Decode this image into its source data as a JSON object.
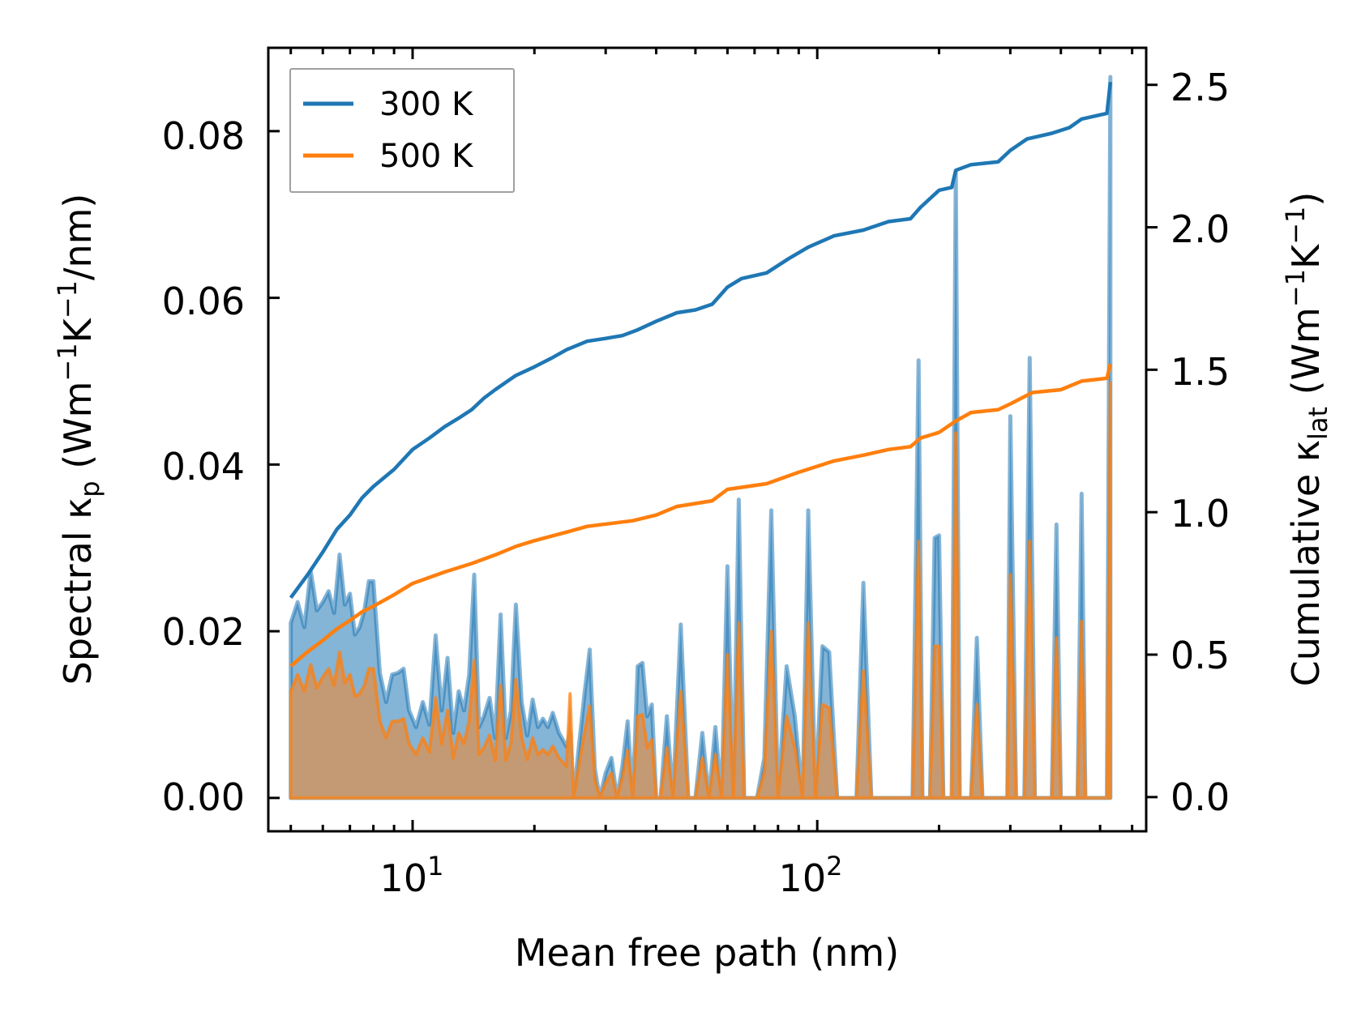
{
  "chart_data": {
    "type": "area+line (dual y-axis, log x)",
    "xlabel": "Mean free path (nm)",
    "xscale": "log",
    "xlim": [
      4.4,
      650
    ],
    "x_major_ticks": [
      {
        "value": 10,
        "base": "10",
        "exp": "1"
      },
      {
        "value": 100,
        "base": "10",
        "exp": "2"
      }
    ],
    "y_left": {
      "label_parts": {
        "pre": "Spectral κ",
        "sub": "p",
        "mid": " (Wm",
        "sup1": "−1",
        "mid2": "K",
        "sup2": "−1",
        "post": "/nm)"
      },
      "lim": [
        -0.004,
        0.09
      ],
      "ticks": [
        "0.00",
        "0.02",
        "0.04",
        "0.06",
        "0.08"
      ],
      "tick_values": [
        0,
        0.02,
        0.04,
        0.06,
        0.08
      ]
    },
    "y_right": {
      "label_parts": {
        "pre": "Cumulative κ",
        "sub": "lat",
        "mid": " (Wm",
        "sup1": "−1",
        "mid2": "K",
        "sup2": "−1",
        "post": ")"
      },
      "lim": [
        -0.12,
        2.63
      ],
      "ticks": [
        "0.0",
        "0.5",
        "1.0",
        "1.5",
        "2.0",
        "2.5"
      ],
      "tick_values": [
        0,
        0.5,
        1.0,
        1.5,
        2.0,
        2.5
      ]
    },
    "legend": {
      "position": "upper-left",
      "entries": [
        "300 K",
        "500 K"
      ]
    },
    "colors": {
      "s300": "#1f77b4",
      "s500": "#ff7f0e",
      "fill500": "#c49a74"
    },
    "spectral_300K": [
      [
        5.0,
        0.0
      ],
      [
        5.0,
        0.021
      ],
      [
        5.2,
        0.0235
      ],
      [
        5.4,
        0.0205
      ],
      [
        5.6,
        0.0272
      ],
      [
        5.8,
        0.0225
      ],
      [
        6.0,
        0.0235
      ],
      [
        6.2,
        0.0248
      ],
      [
        6.4,
        0.0222
      ],
      [
        6.6,
        0.0292
      ],
      [
        6.8,
        0.0232
      ],
      [
        7.0,
        0.0245
      ],
      [
        7.2,
        0.0196
      ],
      [
        7.4,
        0.0205
      ],
      [
        7.6,
        0.0225
      ],
      [
        7.8,
        0.026
      ],
      [
        8.0,
        0.026
      ],
      [
        8.3,
        0.015
      ],
      [
        8.6,
        0.0115
      ],
      [
        8.9,
        0.0148
      ],
      [
        9.2,
        0.015
      ],
      [
        9.5,
        0.0155
      ],
      [
        9.8,
        0.0105
      ],
      [
        10.2,
        0.0085
      ],
      [
        10.6,
        0.0115
      ],
      [
        11.0,
        0.0088
      ],
      [
        11.4,
        0.0195
      ],
      [
        11.8,
        0.0105
      ],
      [
        12.2,
        0.0168
      ],
      [
        12.6,
        0.0078
      ],
      [
        13.0,
        0.0128
      ],
      [
        13.4,
        0.0105
      ],
      [
        13.8,
        0.0148
      ],
      [
        14.2,
        0.0268
      ],
      [
        14.6,
        0.0085
      ],
      [
        15.0,
        0.0098
      ],
      [
        15.5,
        0.012
      ],
      [
        16.0,
        0.0072
      ],
      [
        16.5,
        0.022
      ],
      [
        17.0,
        0.0072
      ],
      [
        17.5,
        0.0105
      ],
      [
        18.0,
        0.0232
      ],
      [
        18.6,
        0.0115
      ],
      [
        19.2,
        0.0075
      ],
      [
        19.8,
        0.0118
      ],
      [
        20.4,
        0.0085
      ],
      [
        21.0,
        0.0095
      ],
      [
        21.6,
        0.0085
      ],
      [
        22.2,
        0.0102
      ],
      [
        23.0,
        0.0078
      ],
      [
        24.0,
        0.0062
      ],
      [
        24.5,
        0.0078
      ],
      [
        25.0,
        0.0
      ],
      [
        25.8,
        0.0065
      ],
      [
        26.6,
        0.0125
      ],
      [
        27.4,
        0.0178
      ],
      [
        28.2,
        0.0035
      ],
      [
        29.0,
        0.0
      ],
      [
        30.0,
        0.003
      ],
      [
        31.0,
        0.0048
      ],
      [
        32.0,
        0.0
      ],
      [
        33.0,
        0.0038
      ],
      [
        34.0,
        0.0092
      ],
      [
        35.0,
        0.0
      ],
      [
        36.0,
        0.0158
      ],
      [
        37.0,
        0.0162
      ],
      [
        38.0,
        0.0098
      ],
      [
        39.0,
        0.0112
      ],
      [
        40.0,
        0.0
      ],
      [
        41.0,
        0.0
      ],
      [
        42.5,
        0.0098
      ],
      [
        44.0,
        0.0
      ],
      [
        46.0,
        0.0208
      ],
      [
        48.0,
        0.0
      ],
      [
        50.0,
        0.0
      ],
      [
        52.0,
        0.0078
      ],
      [
        54.0,
        0.0
      ],
      [
        56.0,
        0.0085
      ],
      [
        58.0,
        0.0
      ],
      [
        60.0,
        0.0278
      ],
      [
        62.0,
        0.0
      ],
      [
        64.0,
        0.0358
      ],
      [
        66.0,
        0.0
      ],
      [
        68.0,
        0.0
      ],
      [
        71.0,
        0.0
      ],
      [
        74.0,
        0.0048
      ],
      [
        77.0,
        0.0345
      ],
      [
        80.0,
        0.0
      ],
      [
        84.0,
        0.0158
      ],
      [
        88.0,
        0.0098
      ],
      [
        92.0,
        0.0
      ],
      [
        95.0,
        0.0345
      ],
      [
        99.0,
        0.0
      ],
      [
        103.0,
        0.0182
      ],
      [
        107.0,
        0.0175
      ],
      [
        112.0,
        0.0
      ],
      [
        118.0,
        0.0
      ],
      [
        125.0,
        0.0
      ],
      [
        130.0,
        0.0258
      ],
      [
        136.0,
        0.0
      ],
      [
        145.0,
        0.0
      ],
      [
        155.0,
        0.0
      ],
      [
        165.0,
        0.0
      ],
      [
        172.0,
        0.0
      ],
      [
        178.0,
        0.0525
      ],
      [
        182.0,
        0.0
      ],
      [
        190.0,
        0.0
      ],
      [
        195.0,
        0.0312
      ],
      [
        200.0,
        0.0315
      ],
      [
        205.0,
        0.0
      ],
      [
        215.0,
        0.0
      ],
      [
        220.0,
        0.0752
      ],
      [
        225.0,
        0.0
      ],
      [
        240.0,
        0.0
      ],
      [
        248.0,
        0.0192
      ],
      [
        256.0,
        0.0
      ],
      [
        280.0,
        0.0
      ],
      [
        295.0,
        0.0
      ],
      [
        300.0,
        0.0458
      ],
      [
        310.0,
        0.0
      ],
      [
        325.0,
        0.0
      ],
      [
        335.0,
        0.0528
      ],
      [
        345.0,
        0.0
      ],
      [
        380.0,
        0.0
      ],
      [
        390.0,
        0.0328
      ],
      [
        400.0,
        0.0
      ],
      [
        440.0,
        0.0
      ],
      [
        450.0,
        0.0365
      ],
      [
        460.0,
        0.0
      ],
      [
        500.0,
        0.0
      ],
      [
        520.0,
        0.0
      ],
      [
        530.0,
        0.0865
      ]
    ],
    "spectral_500K": [
      [
        5.0,
        0.0
      ],
      [
        5.0,
        0.0128
      ],
      [
        5.2,
        0.0148
      ],
      [
        5.4,
        0.0128
      ],
      [
        5.6,
        0.016
      ],
      [
        5.8,
        0.0132
      ],
      [
        6.0,
        0.0145
      ],
      [
        6.2,
        0.0155
      ],
      [
        6.4,
        0.0135
      ],
      [
        6.6,
        0.0175
      ],
      [
        6.8,
        0.0138
      ],
      [
        7.0,
        0.0148
      ],
      [
        7.2,
        0.0122
      ],
      [
        7.4,
        0.0125
      ],
      [
        7.6,
        0.0135
      ],
      [
        7.8,
        0.0155
      ],
      [
        8.0,
        0.0155
      ],
      [
        8.3,
        0.0092
      ],
      [
        8.6,
        0.0072
      ],
      [
        8.9,
        0.0092
      ],
      [
        9.2,
        0.0092
      ],
      [
        9.5,
        0.0095
      ],
      [
        9.8,
        0.0065
      ],
      [
        10.2,
        0.0052
      ],
      [
        10.6,
        0.0072
      ],
      [
        11.0,
        0.0055
      ],
      [
        11.4,
        0.012
      ],
      [
        11.8,
        0.0065
      ],
      [
        12.2,
        0.0105
      ],
      [
        12.6,
        0.0048
      ],
      [
        13.0,
        0.0078
      ],
      [
        13.4,
        0.0065
      ],
      [
        13.8,
        0.0092
      ],
      [
        14.2,
        0.0165
      ],
      [
        14.6,
        0.0052
      ],
      [
        15.0,
        0.006
      ],
      [
        15.5,
        0.0075
      ],
      [
        16.0,
        0.0045
      ],
      [
        16.5,
        0.0135
      ],
      [
        17.0,
        0.0045
      ],
      [
        17.5,
        0.0065
      ],
      [
        18.0,
        0.0142
      ],
      [
        18.6,
        0.0072
      ],
      [
        19.2,
        0.0046
      ],
      [
        19.8,
        0.0072
      ],
      [
        20.4,
        0.0052
      ],
      [
        21.0,
        0.0058
      ],
      [
        21.6,
        0.0052
      ],
      [
        22.2,
        0.0062
      ],
      [
        23.0,
        0.0048
      ],
      [
        24.0,
        0.0038
      ],
      [
        24.5,
        0.0125
      ],
      [
        25.0,
        0.0
      ],
      [
        25.8,
        0.004
      ],
      [
        26.6,
        0.0078
      ],
      [
        27.4,
        0.011
      ],
      [
        28.2,
        0.0022
      ],
      [
        29.0,
        0.0
      ],
      [
        30.0,
        0.0018
      ],
      [
        31.0,
        0.003
      ],
      [
        32.0,
        0.0
      ],
      [
        33.0,
        0.0024
      ],
      [
        34.0,
        0.0057
      ],
      [
        35.0,
        0.0
      ],
      [
        36.0,
        0.0098
      ],
      [
        37.0,
        0.01
      ],
      [
        38.0,
        0.006
      ],
      [
        39.0,
        0.007
      ],
      [
        40.0,
        0.0
      ],
      [
        41.0,
        0.0
      ],
      [
        42.5,
        0.006
      ],
      [
        44.0,
        0.0
      ],
      [
        46.0,
        0.0128
      ],
      [
        48.0,
        0.0
      ],
      [
        50.0,
        0.0
      ],
      [
        52.0,
        0.0048
      ],
      [
        54.0,
        0.0
      ],
      [
        56.0,
        0.0052
      ],
      [
        58.0,
        0.0
      ],
      [
        60.0,
        0.0172
      ],
      [
        62.0,
        0.0
      ],
      [
        64.0,
        0.021
      ],
      [
        66.0,
        0.0
      ],
      [
        68.0,
        0.0
      ],
      [
        71.0,
        0.0
      ],
      [
        74.0,
        0.003
      ],
      [
        77.0,
        0.02
      ],
      [
        80.0,
        0.0
      ],
      [
        84.0,
        0.0098
      ],
      [
        88.0,
        0.006
      ],
      [
        92.0,
        0.0
      ],
      [
        95.0,
        0.021
      ],
      [
        99.0,
        0.0
      ],
      [
        103.0,
        0.0112
      ],
      [
        107.0,
        0.0108
      ],
      [
        112.0,
        0.0
      ],
      [
        118.0,
        0.0
      ],
      [
        125.0,
        0.0
      ],
      [
        130.0,
        0.0152
      ],
      [
        136.0,
        0.0
      ],
      [
        145.0,
        0.0
      ],
      [
        155.0,
        0.0
      ],
      [
        165.0,
        0.0
      ],
      [
        172.0,
        0.0
      ],
      [
        178.0,
        0.0308
      ],
      [
        182.0,
        0.0
      ],
      [
        190.0,
        0.0
      ],
      [
        195.0,
        0.0182
      ],
      [
        200.0,
        0.0182
      ],
      [
        205.0,
        0.0
      ],
      [
        215.0,
        0.0
      ],
      [
        220.0,
        0.0438
      ],
      [
        225.0,
        0.0
      ],
      [
        240.0,
        0.0
      ],
      [
        248.0,
        0.0112
      ],
      [
        256.0,
        0.0
      ],
      [
        280.0,
        0.0
      ],
      [
        295.0,
        0.0
      ],
      [
        300.0,
        0.0268
      ],
      [
        310.0,
        0.0
      ],
      [
        325.0,
        0.0
      ],
      [
        335.0,
        0.0308
      ],
      [
        345.0,
        0.0
      ],
      [
        380.0,
        0.0
      ],
      [
        390.0,
        0.0192
      ],
      [
        400.0,
        0.0
      ],
      [
        440.0,
        0.0
      ],
      [
        450.0,
        0.0212
      ],
      [
        460.0,
        0.0
      ],
      [
        500.0,
        0.0
      ],
      [
        520.0,
        0.0
      ],
      [
        530.0,
        0.0498
      ]
    ],
    "cumulative_300K": [
      [
        5.0,
        0.7
      ],
      [
        5.5,
        0.78
      ],
      [
        6.0,
        0.86
      ],
      [
        6.5,
        0.94
      ],
      [
        7.0,
        0.99
      ],
      [
        7.5,
        1.05
      ],
      [
        8.0,
        1.09
      ],
      [
        9.0,
        1.15
      ],
      [
        10.0,
        1.22
      ],
      [
        11.0,
        1.26
      ],
      [
        12.0,
        1.3
      ],
      [
        13.0,
        1.33
      ],
      [
        14.0,
        1.36
      ],
      [
        15.0,
        1.4
      ],
      [
        16.0,
        1.43
      ],
      [
        18.0,
        1.48
      ],
      [
        20.0,
        1.51
      ],
      [
        22.0,
        1.54
      ],
      [
        24.0,
        1.57
      ],
      [
        27.0,
        1.6
      ],
      [
        30.0,
        1.61
      ],
      [
        33.0,
        1.62
      ],
      [
        36.0,
        1.64
      ],
      [
        40.0,
        1.67
      ],
      [
        45.0,
        1.7
      ],
      [
        50.0,
        1.71
      ],
      [
        55.0,
        1.73
      ],
      [
        60.0,
        1.79
      ],
      [
        65.0,
        1.82
      ],
      [
        75.0,
        1.84
      ],
      [
        85.0,
        1.89
      ],
      [
        95.0,
        1.93
      ],
      [
        110.0,
        1.97
      ],
      [
        130.0,
        1.99
      ],
      [
        150.0,
        2.02
      ],
      [
        170.0,
        2.03
      ],
      [
        180.0,
        2.07
      ],
      [
        200.0,
        2.13
      ],
      [
        215.0,
        2.14
      ],
      [
        220.0,
        2.2
      ],
      [
        240.0,
        2.22
      ],
      [
        280.0,
        2.23
      ],
      [
        300.0,
        2.27
      ],
      [
        330.0,
        2.31
      ],
      [
        380.0,
        2.33
      ],
      [
        420.0,
        2.35
      ],
      [
        450.0,
        2.38
      ],
      [
        520.0,
        2.4
      ],
      [
        530.0,
        2.51
      ]
    ],
    "cumulative_500K": [
      [
        5.0,
        0.46
      ],
      [
        5.5,
        0.51
      ],
      [
        6.0,
        0.55
      ],
      [
        6.5,
        0.59
      ],
      [
        7.0,
        0.62
      ],
      [
        7.5,
        0.65
      ],
      [
        8.0,
        0.67
      ],
      [
        9.0,
        0.71
      ],
      [
        10.0,
        0.75
      ],
      [
        12.0,
        0.79
      ],
      [
        14.0,
        0.82
      ],
      [
        16.0,
        0.85
      ],
      [
        18.0,
        0.88
      ],
      [
        20.0,
        0.9
      ],
      [
        24.0,
        0.93
      ],
      [
        27.0,
        0.95
      ],
      [
        35.0,
        0.97
      ],
      [
        40.0,
        0.99
      ],
      [
        45.0,
        1.02
      ],
      [
        55.0,
        1.04
      ],
      [
        60.0,
        1.08
      ],
      [
        75.0,
        1.1
      ],
      [
        90.0,
        1.14
      ],
      [
        110.0,
        1.18
      ],
      [
        130.0,
        1.2
      ],
      [
        150.0,
        1.22
      ],
      [
        170.0,
        1.23
      ],
      [
        180.0,
        1.26
      ],
      [
        200.0,
        1.28
      ],
      [
        220.0,
        1.32
      ],
      [
        240.0,
        1.35
      ],
      [
        280.0,
        1.36
      ],
      [
        300.0,
        1.38
      ],
      [
        340.0,
        1.42
      ],
      [
        400.0,
        1.43
      ],
      [
        450.0,
        1.46
      ],
      [
        520.0,
        1.47
      ],
      [
        530.0,
        1.52
      ]
    ]
  }
}
